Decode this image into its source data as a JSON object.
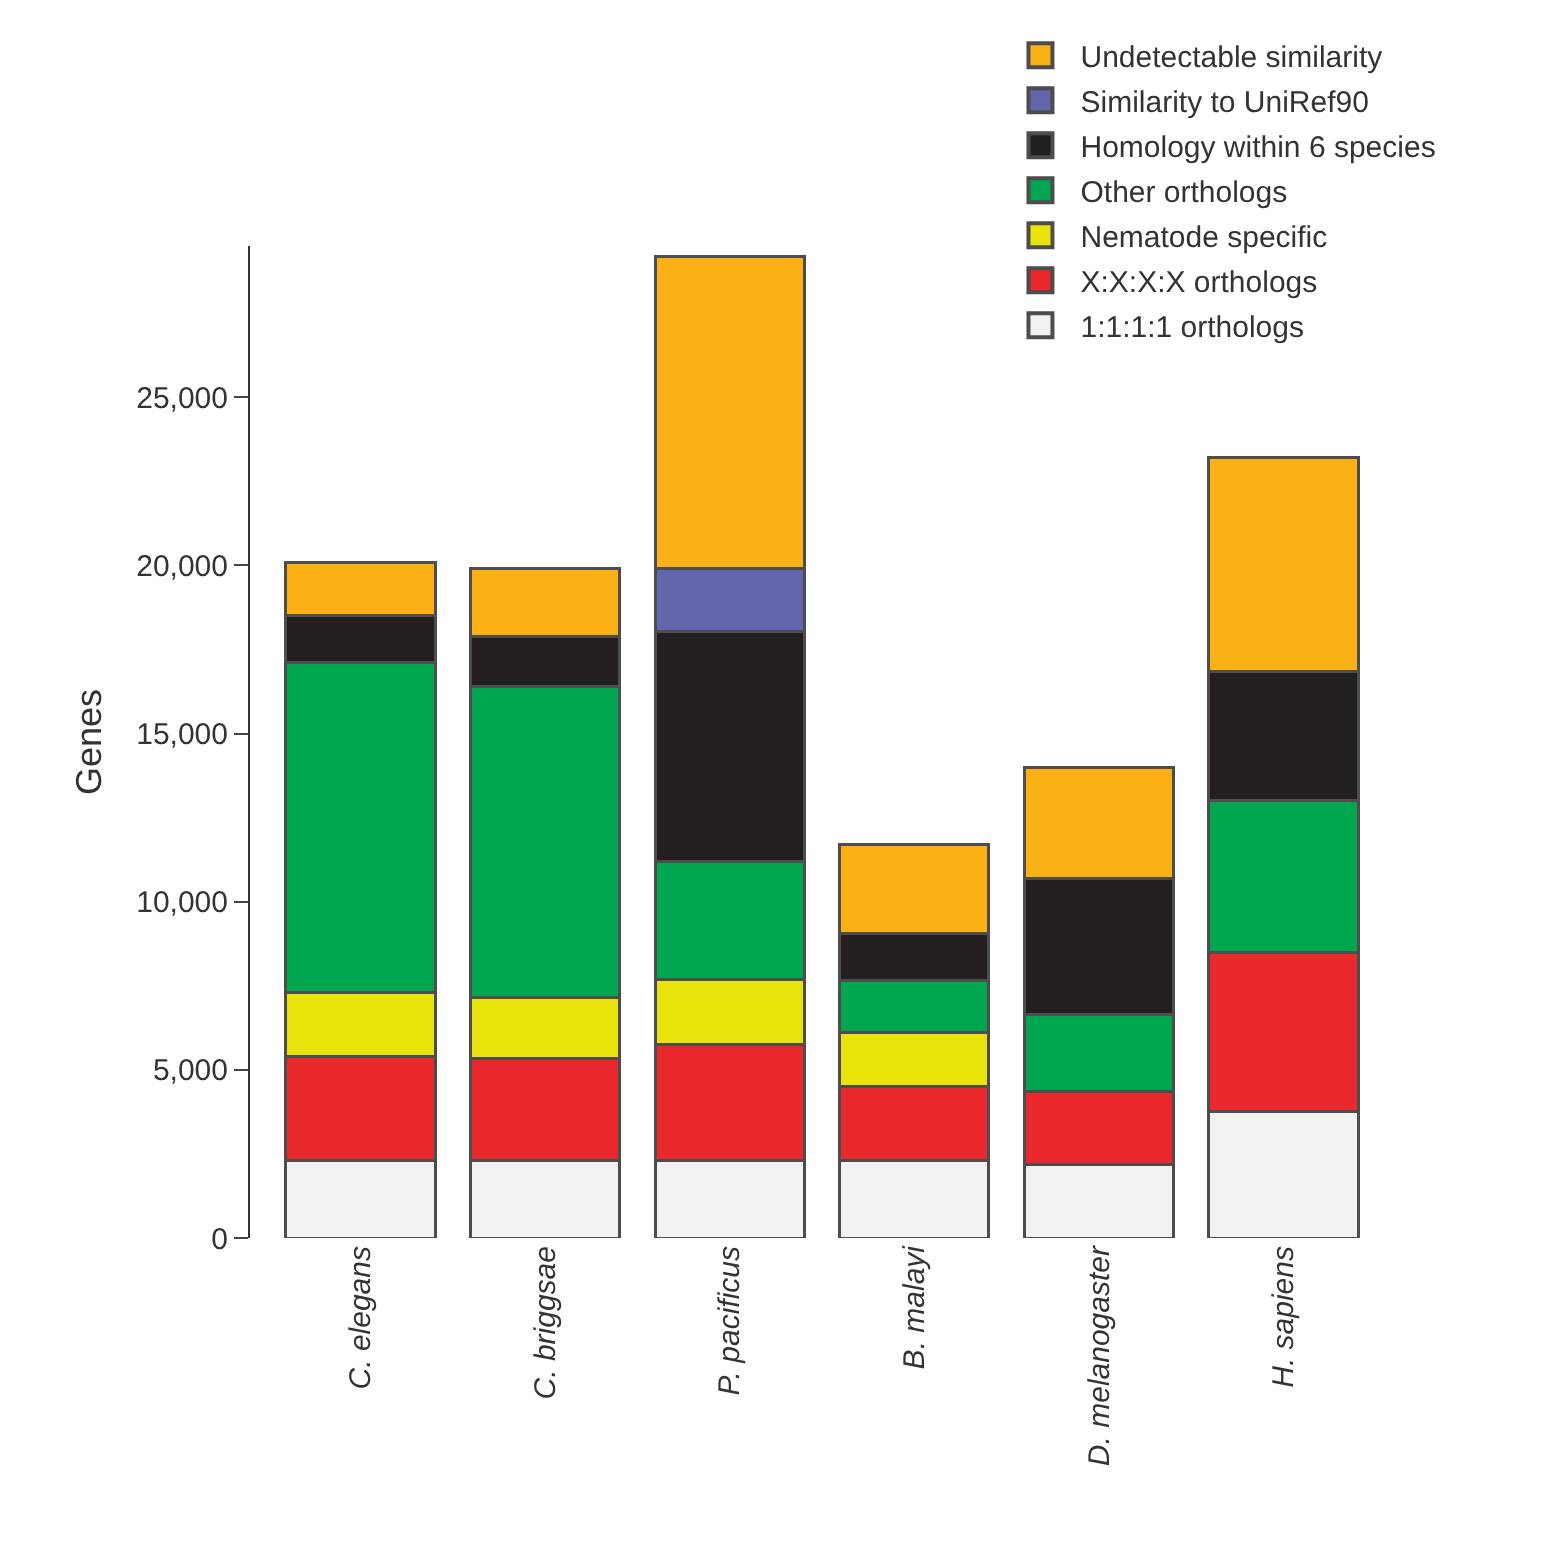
{
  "chart_data": {
    "type": "bar",
    "stacked": true,
    "ylabel": "Genes",
    "categories": [
      "C. elegans",
      "C. briggsae",
      "P. pacificus",
      "B. malayi",
      "D. melanogaster",
      "H. sapiens"
    ],
    "series": [
      {
        "name": "1:1:1:1 orthologs",
        "color": "#f2f2f2",
        "values": [
          2300,
          2300,
          2300,
          2300,
          2200,
          3750
        ]
      },
      {
        "name": "X:X:X:X orthologs",
        "color": "#e8282a",
        "values": [
          3100,
          3050,
          3450,
          2200,
          2150,
          4750
        ]
      },
      {
        "name": "Nematode specific",
        "color": "#e8e30a",
        "values": [
          1900,
          1800,
          1950,
          1600,
          0,
          0
        ]
      },
      {
        "name": "Other orthologs",
        "color": "#00a650",
        "values": [
          9800,
          9250,
          3500,
          1550,
          2300,
          4500
        ]
      },
      {
        "name": "Homology within 6 species",
        "color": "#231f20",
        "values": [
          1400,
          1500,
          6850,
          1400,
          4050,
          3850
        ]
      },
      {
        "name": "Similarity to UniRef90",
        "color": "#6366ad",
        "values": [
          0,
          0,
          1850,
          0,
          0,
          0
        ]
      },
      {
        "name": "Undetectable similarity",
        "color": "#fbb116",
        "values": [
          1600,
          2000,
          9300,
          2650,
          3300,
          6350
        ]
      }
    ],
    "ylim": [
      0,
      29500
    ],
    "yticks": [
      0,
      {
        "value": 5000,
        "label": "5,000"
      },
      {
        "value": 10000,
        "label": "10,000"
      },
      {
        "value": 15000,
        "label": "15,000"
      },
      {
        "value": 20000,
        "label": "20,000"
      },
      {
        "value": 25000,
        "label": "25,000"
      }
    ],
    "legend": "top right"
  }
}
